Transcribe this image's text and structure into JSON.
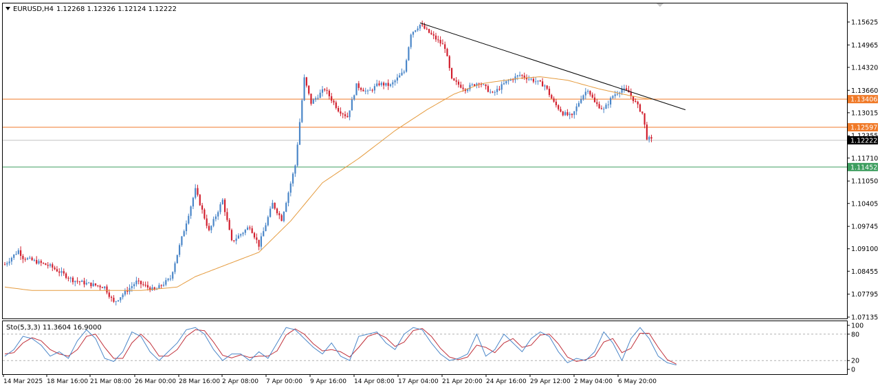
{
  "header": {
    "symbol": "EURUSD,H4",
    "ohlc": "1.12268 1.12326 1.12124 1.12222",
    "menu_icon": "triangle-down-icon"
  },
  "stochastic_header": "Sto(5,3,3) 11.3604 16.9000",
  "colors": {
    "bull": "#4a86c8",
    "bear": "#d11f2e",
    "ma": "#e59b3e",
    "resistance": "#f07a28",
    "support": "#3d9e5f",
    "trendline": "#000000",
    "sto_main": "#4a86c8",
    "sto_signal": "#c0303a"
  },
  "chart_data": [
    {
      "type": "candlestick",
      "timeframe": "H4",
      "y_ticks": [
        "1.15625",
        "1.14965",
        "1.14320",
        "1.13660",
        "1.13015",
        "1.12355",
        "1.11710",
        "1.11050",
        "1.10405",
        "1.09745",
        "1.09100",
        "1.08455",
        "1.07795",
        "1.07135"
      ],
      "ylim": [
        1.0695,
        1.1606
      ],
      "x_ticks": [
        "14 Mar 2025",
        "18 Mar 16:00",
        "21 Mar 08:00",
        "26 Mar 00:00",
        "28 Mar 16:00",
        "2 Apr 08:00",
        "7 Apr 00:00",
        "9 Apr 16:00",
        "14 Apr 08:00",
        "17 Apr 04:00",
        "21 Apr 20:00",
        "24 Apr 16:00",
        "29 Apr 12:00",
        "2 May 04:00",
        "6 May 20:00"
      ],
      "price_path": [
        [
          0,
          1.0865
        ],
        [
          6,
          1.0905
        ],
        [
          8,
          1.0885
        ],
        [
          20,
          1.086
        ],
        [
          30,
          1.082
        ],
        [
          36,
          1.081
        ],
        [
          44,
          1.08
        ],
        [
          48,
          1.0755
        ],
        [
          58,
          1.0815
        ],
        [
          66,
          1.079
        ],
        [
          73,
          1.0825
        ],
        [
          84,
          1.108
        ],
        [
          90,
          1.096
        ],
        [
          96,
          1.105
        ],
        [
          100,
          1.093
        ],
        [
          108,
          1.0975
        ],
        [
          112,
          1.092
        ],
        [
          118,
          1.104
        ],
        [
          122,
          1.0995
        ],
        [
          128,
          1.115
        ],
        [
          132,
          1.14
        ],
        [
          135,
          1.133
        ],
        [
          141,
          1.137
        ],
        [
          147,
          1.131
        ],
        [
          151,
          1.129
        ],
        [
          155,
          1.138
        ],
        [
          160,
          1.136
        ],
        [
          165,
          1.1385
        ],
        [
          170,
          1.138
        ],
        [
          176,
          1.142
        ],
        [
          179,
          1.153
        ],
        [
          183,
          1.1555
        ],
        [
          189,
          1.152
        ],
        [
          194,
          1.149
        ],
        [
          197,
          1.1395
        ],
        [
          203,
          1.137
        ],
        [
          209,
          1.139
        ],
        [
          215,
          1.1355
        ],
        [
          221,
          1.139
        ],
        [
          227,
          1.141
        ],
        [
          233,
          1.1395
        ],
        [
          238,
          1.138
        ],
        [
          242,
          1.133
        ],
        [
          246,
          1.13
        ],
        [
          250,
          1.129
        ],
        [
          254,
          1.1345
        ],
        [
          257,
          1.137
        ],
        [
          260,
          1.133
        ],
        [
          264,
          1.131
        ],
        [
          268,
          1.135
        ],
        [
          272,
          1.137
        ],
        [
          275,
          1.136
        ],
        [
          278,
          1.133
        ],
        [
          281,
          1.13
        ],
        [
          283,
          1.123
        ],
        [
          285,
          1.1222
        ]
      ],
      "ma_path": [
        [
          0,
          1.08
        ],
        [
          12,
          1.079
        ],
        [
          30,
          1.079
        ],
        [
          60,
          1.079
        ],
        [
          76,
          1.08
        ],
        [
          84,
          1.083
        ],
        [
          100,
          1.087
        ],
        [
          112,
          1.09
        ],
        [
          126,
          1.099
        ],
        [
          140,
          1.11
        ],
        [
          156,
          1.117
        ],
        [
          172,
          1.125
        ],
        [
          186,
          1.131
        ],
        [
          198,
          1.1355
        ],
        [
          210,
          1.1385
        ],
        [
          226,
          1.14
        ],
        [
          236,
          1.1405
        ],
        [
          248,
          1.1395
        ],
        [
          262,
          1.137
        ],
        [
          276,
          1.135
        ],
        [
          285,
          1.134
        ]
      ],
      "trendline": {
        "from": [
          183,
          1.156
        ],
        "to": [
          300,
          1.131
        ]
      },
      "levels": [
        {
          "value": 1.13406,
          "label": "1.13406",
          "kind": "resistance"
        },
        {
          "value": 1.12597,
          "label": "1.12597",
          "kind": "resistance"
        },
        {
          "value": 1.12222,
          "label": "1.12222",
          "kind": "current"
        },
        {
          "value": 1.11452,
          "label": "1.11452",
          "kind": "support"
        }
      ]
    },
    {
      "type": "line",
      "name": "Stochastic (5,3,3)",
      "y_ticks": [
        "100",
        "80",
        "20",
        "0"
      ],
      "ylim": [
        0,
        100
      ],
      "levels": [
        80,
        20
      ],
      "main_path": [
        [
          0,
          30
        ],
        [
          4,
          45
        ],
        [
          8,
          75
        ],
        [
          12,
          70
        ],
        [
          16,
          55
        ],
        [
          20,
          30
        ],
        [
          24,
          40
        ],
        [
          28,
          25
        ],
        [
          32,
          65
        ],
        [
          36,
          90
        ],
        [
          40,
          70
        ],
        [
          44,
          25
        ],
        [
          48,
          18
        ],
        [
          52,
          40
        ],
        [
          56,
          85
        ],
        [
          60,
          75
        ],
        [
          64,
          40
        ],
        [
          68,
          20
        ],
        [
          72,
          40
        ],
        [
          76,
          60
        ],
        [
          80,
          90
        ],
        [
          84,
          95
        ],
        [
          88,
          80
        ],
        [
          92,
          45
        ],
        [
          96,
          20
        ],
        [
          100,
          35
        ],
        [
          104,
          35
        ],
        [
          108,
          20
        ],
        [
          112,
          40
        ],
        [
          116,
          25
        ],
        [
          120,
          60
        ],
        [
          124,
          95
        ],
        [
          128,
          90
        ],
        [
          132,
          70
        ],
        [
          136,
          50
        ],
        [
          140,
          35
        ],
        [
          144,
          60
        ],
        [
          148,
          30
        ],
        [
          152,
          20
        ],
        [
          156,
          75
        ],
        [
          160,
          80
        ],
        [
          164,
          85
        ],
        [
          168,
          60
        ],
        [
          172,
          45
        ],
        [
          176,
          80
        ],
        [
          180,
          95
        ],
        [
          184,
          90
        ],
        [
          188,
          60
        ],
        [
          192,
          35
        ],
        [
          196,
          20
        ],
        [
          200,
          25
        ],
        [
          204,
          35
        ],
        [
          208,
          80
        ],
        [
          212,
          30
        ],
        [
          216,
          45
        ],
        [
          220,
          80
        ],
        [
          224,
          60
        ],
        [
          228,
          40
        ],
        [
          232,
          70
        ],
        [
          236,
          85
        ],
        [
          240,
          75
        ],
        [
          244,
          40
        ],
        [
          248,
          15
        ],
        [
          252,
          25
        ],
        [
          256,
          20
        ],
        [
          260,
          40
        ],
        [
          264,
          85
        ],
        [
          268,
          60
        ],
        [
          272,
          20
        ],
        [
          276,
          70
        ],
        [
          280,
          95
        ],
        [
          284,
          70
        ],
        [
          288,
          30
        ],
        [
          292,
          15
        ],
        [
          296,
          10
        ]
      ],
      "signal_path": [
        [
          0,
          35
        ],
        [
          4,
          38
        ],
        [
          8,
          60
        ],
        [
          12,
          72
        ],
        [
          16,
          65
        ],
        [
          20,
          45
        ],
        [
          24,
          35
        ],
        [
          28,
          30
        ],
        [
          32,
          45
        ],
        [
          36,
          75
        ],
        [
          40,
          80
        ],
        [
          44,
          50
        ],
        [
          48,
          25
        ],
        [
          52,
          25
        ],
        [
          56,
          60
        ],
        [
          60,
          80
        ],
        [
          64,
          60
        ],
        [
          68,
          30
        ],
        [
          72,
          30
        ],
        [
          76,
          45
        ],
        [
          80,
          75
        ],
        [
          84,
          90
        ],
        [
          88,
          88
        ],
        [
          92,
          62
        ],
        [
          96,
          32
        ],
        [
          100,
          26
        ],
        [
          104,
          33
        ],
        [
          108,
          27
        ],
        [
          112,
          30
        ],
        [
          116,
          30
        ],
        [
          120,
          42
        ],
        [
          124,
          78
        ],
        [
          128,
          92
        ],
        [
          132,
          80
        ],
        [
          136,
          58
        ],
        [
          140,
          42
        ],
        [
          144,
          45
        ],
        [
          148,
          40
        ],
        [
          152,
          28
        ],
        [
          156,
          50
        ],
        [
          160,
          75
        ],
        [
          164,
          82
        ],
        [
          168,
          72
        ],
        [
          172,
          52
        ],
        [
          176,
          62
        ],
        [
          180,
          88
        ],
        [
          184,
          93
        ],
        [
          188,
          75
        ],
        [
          192,
          48
        ],
        [
          196,
          28
        ],
        [
          200,
          22
        ],
        [
          204,
          28
        ],
        [
          208,
          55
        ],
        [
          212,
          50
        ],
        [
          216,
          38
        ],
        [
          220,
          60
        ],
        [
          224,
          70
        ],
        [
          228,
          50
        ],
        [
          232,
          55
        ],
        [
          236,
          78
        ],
        [
          240,
          80
        ],
        [
          244,
          58
        ],
        [
          248,
          28
        ],
        [
          252,
          18
        ],
        [
          256,
          22
        ],
        [
          260,
          30
        ],
        [
          264,
          62
        ],
        [
          268,
          70
        ],
        [
          272,
          38
        ],
        [
          276,
          48
        ],
        [
          280,
          82
        ],
        [
          284,
          82
        ],
        [
          288,
          50
        ],
        [
          292,
          22
        ],
        [
          296,
          12
        ]
      ]
    }
  ]
}
